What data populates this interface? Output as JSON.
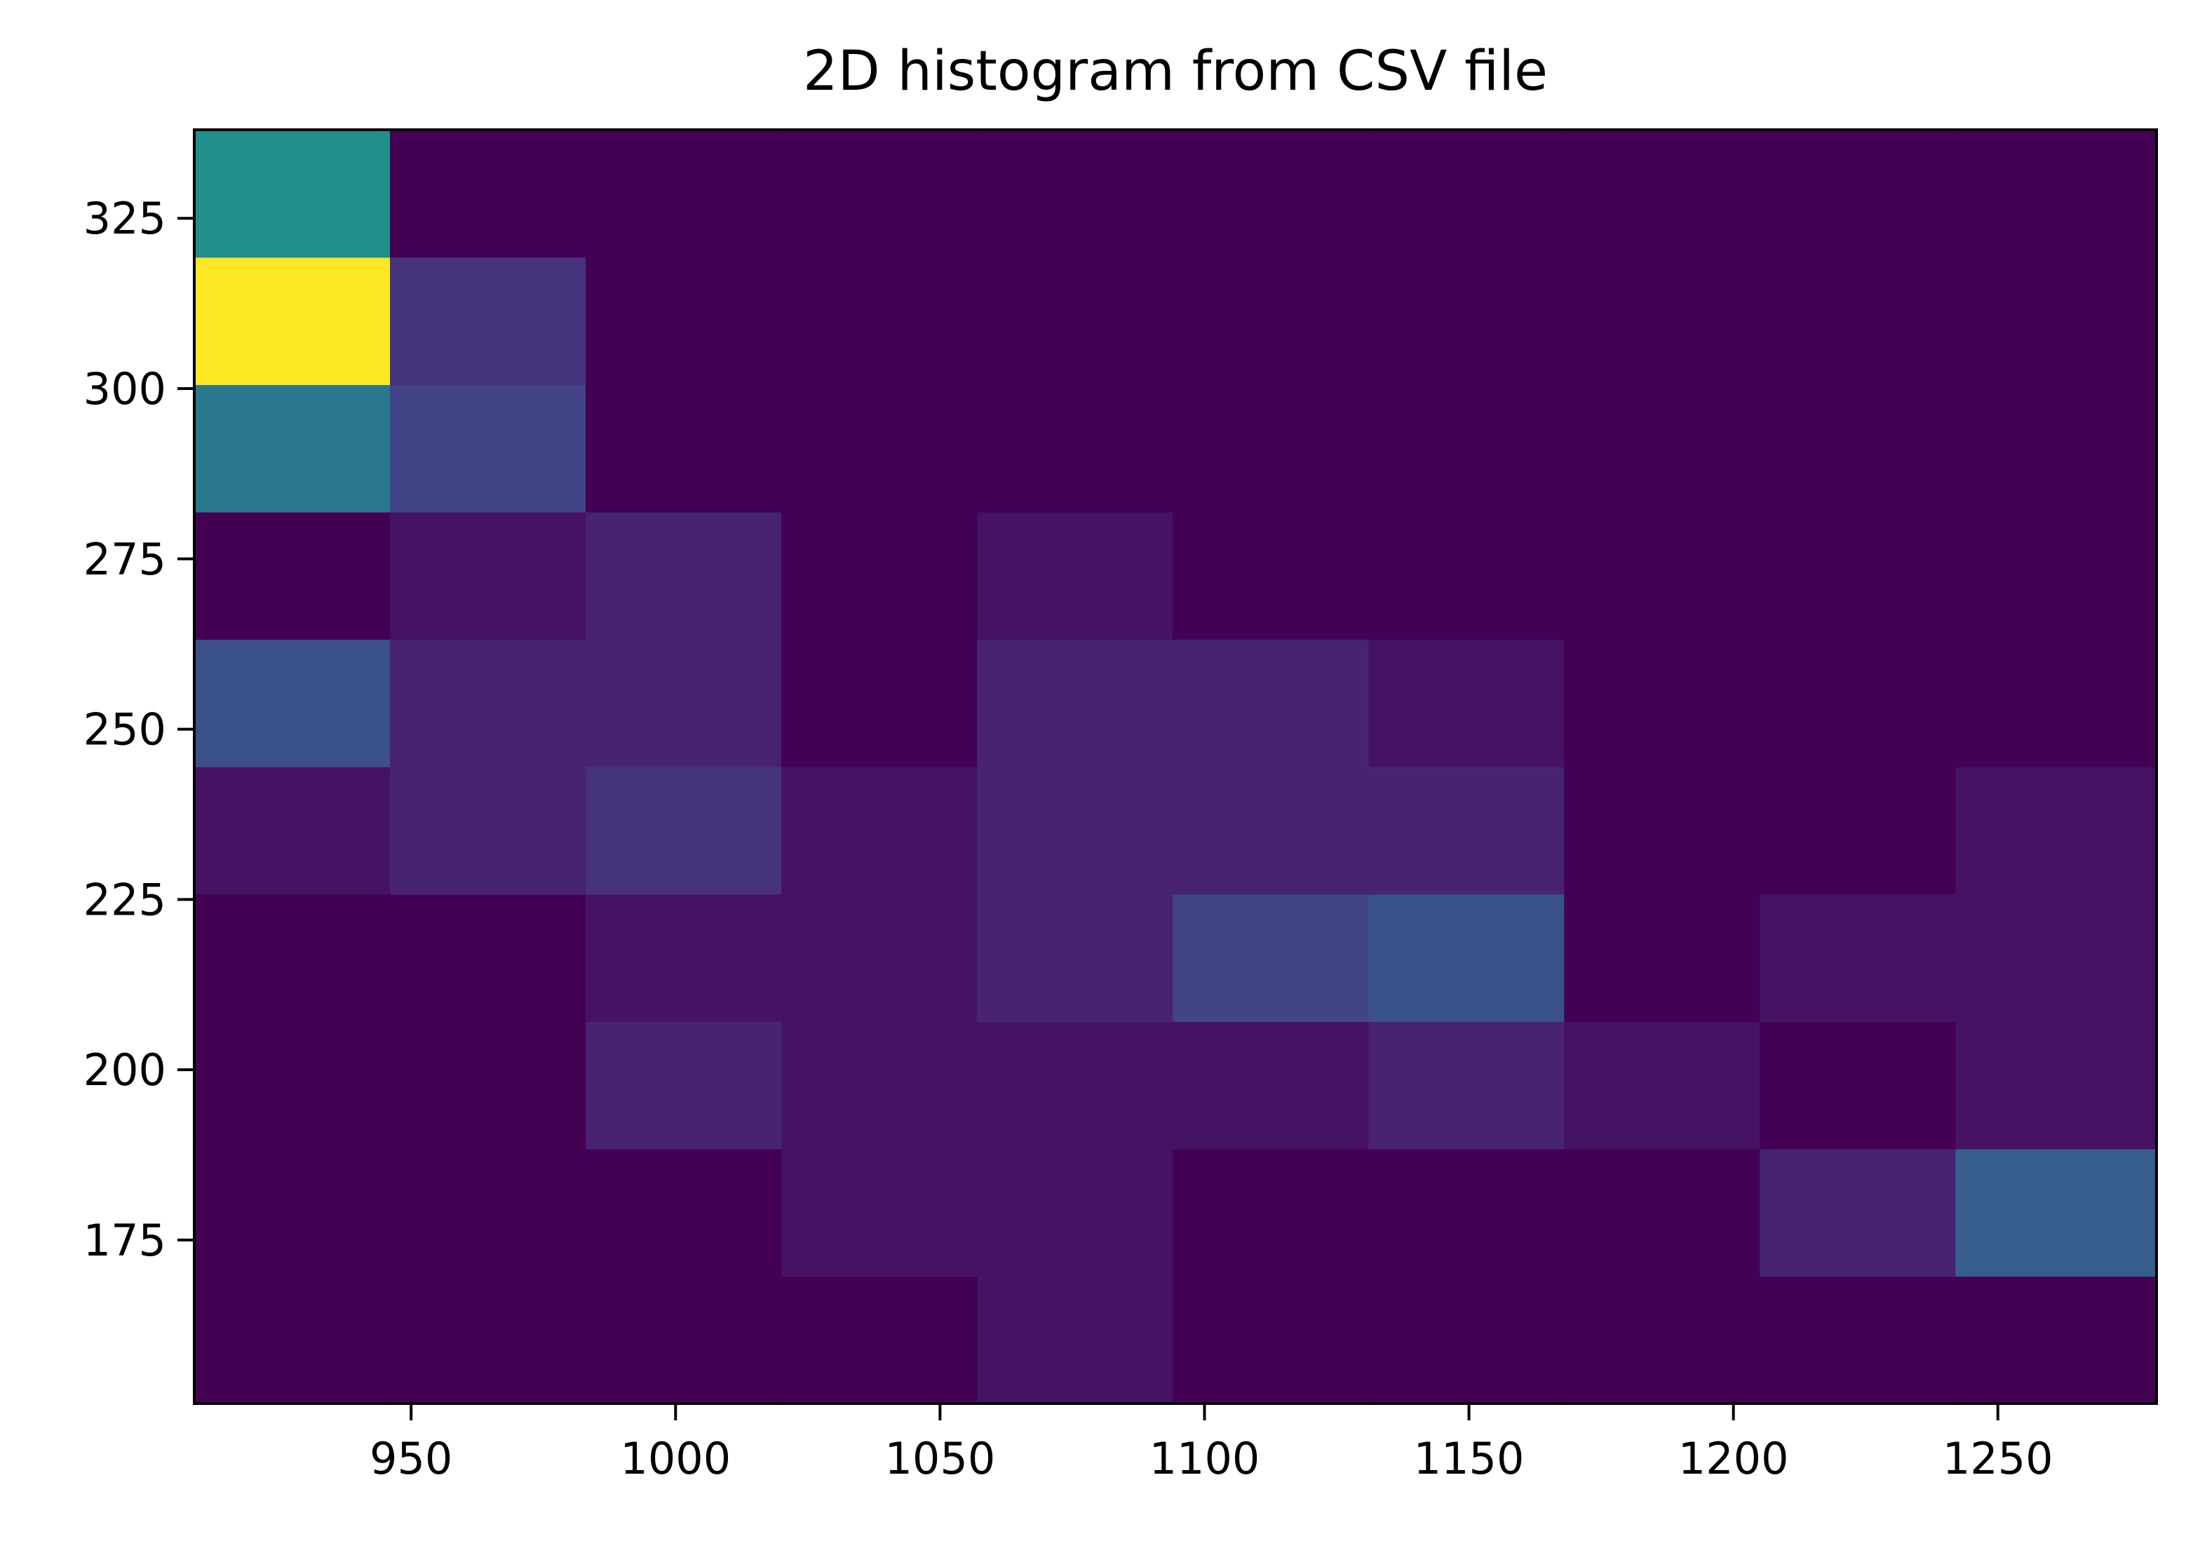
{
  "chart_data": {
    "type": "heatmap",
    "title": "2D histogram from CSV file",
    "xlabel": "",
    "ylabel": "",
    "colormap": "viridis",
    "xlim": [
      909,
      1280
    ],
    "ylim": [
      151,
      338
    ],
    "x_edges": [
      909,
      946,
      983,
      1020,
      1057,
      1094,
      1131,
      1168,
      1205,
      1242,
      1280
    ],
    "y_edges": [
      151,
      169.7,
      188.4,
      207.1,
      225.8,
      244.5,
      263.2,
      281.9,
      300.6,
      319.3,
      338
    ],
    "x_ticks": [
      950,
      1000,
      1050,
      1100,
      1150,
      1200,
      1250
    ],
    "x_tick_labels": [
      "950",
      "1000",
      "1050",
      "1100",
      "1150",
      "1200",
      "1250"
    ],
    "y_ticks": [
      175,
      200,
      225,
      250,
      275,
      300,
      325
    ],
    "y_tick_labels": [
      "175",
      "200",
      "225",
      "250",
      "275",
      "300",
      "325"
    ],
    "z_max": 16,
    "counts": [
      [
        0,
        0,
        0,
        0,
        1,
        0,
        0,
        0,
        0,
        0
      ],
      [
        0,
        0,
        0,
        1,
        1,
        0,
        0,
        0,
        2,
        6
      ],
      [
        0,
        0,
        2,
        1,
        1,
        1,
        2,
        1,
        0,
        1
      ],
      [
        0,
        0,
        1,
        1,
        2,
        4,
        5,
        0,
        1,
        1
      ],
      [
        1,
        2,
        3,
        1,
        2,
        2,
        2,
        0,
        0,
        1
      ],
      [
        5,
        2,
        2,
        0,
        2,
        2,
        1,
        0,
        0,
        0
      ],
      [
        0,
        1,
        2,
        0,
        1,
        0,
        0,
        0,
        0,
        0
      ],
      [
        8,
        4,
        0,
        0,
        0,
        0,
        0,
        0,
        0,
        0
      ],
      [
        16,
        3,
        0,
        0,
        0,
        0,
        0,
        0,
        0,
        0
      ],
      [
        10,
        0,
        0,
        0,
        0,
        0,
        0,
        0,
        0,
        0
      ]
    ],
    "grid": false,
    "legend": "none"
  }
}
